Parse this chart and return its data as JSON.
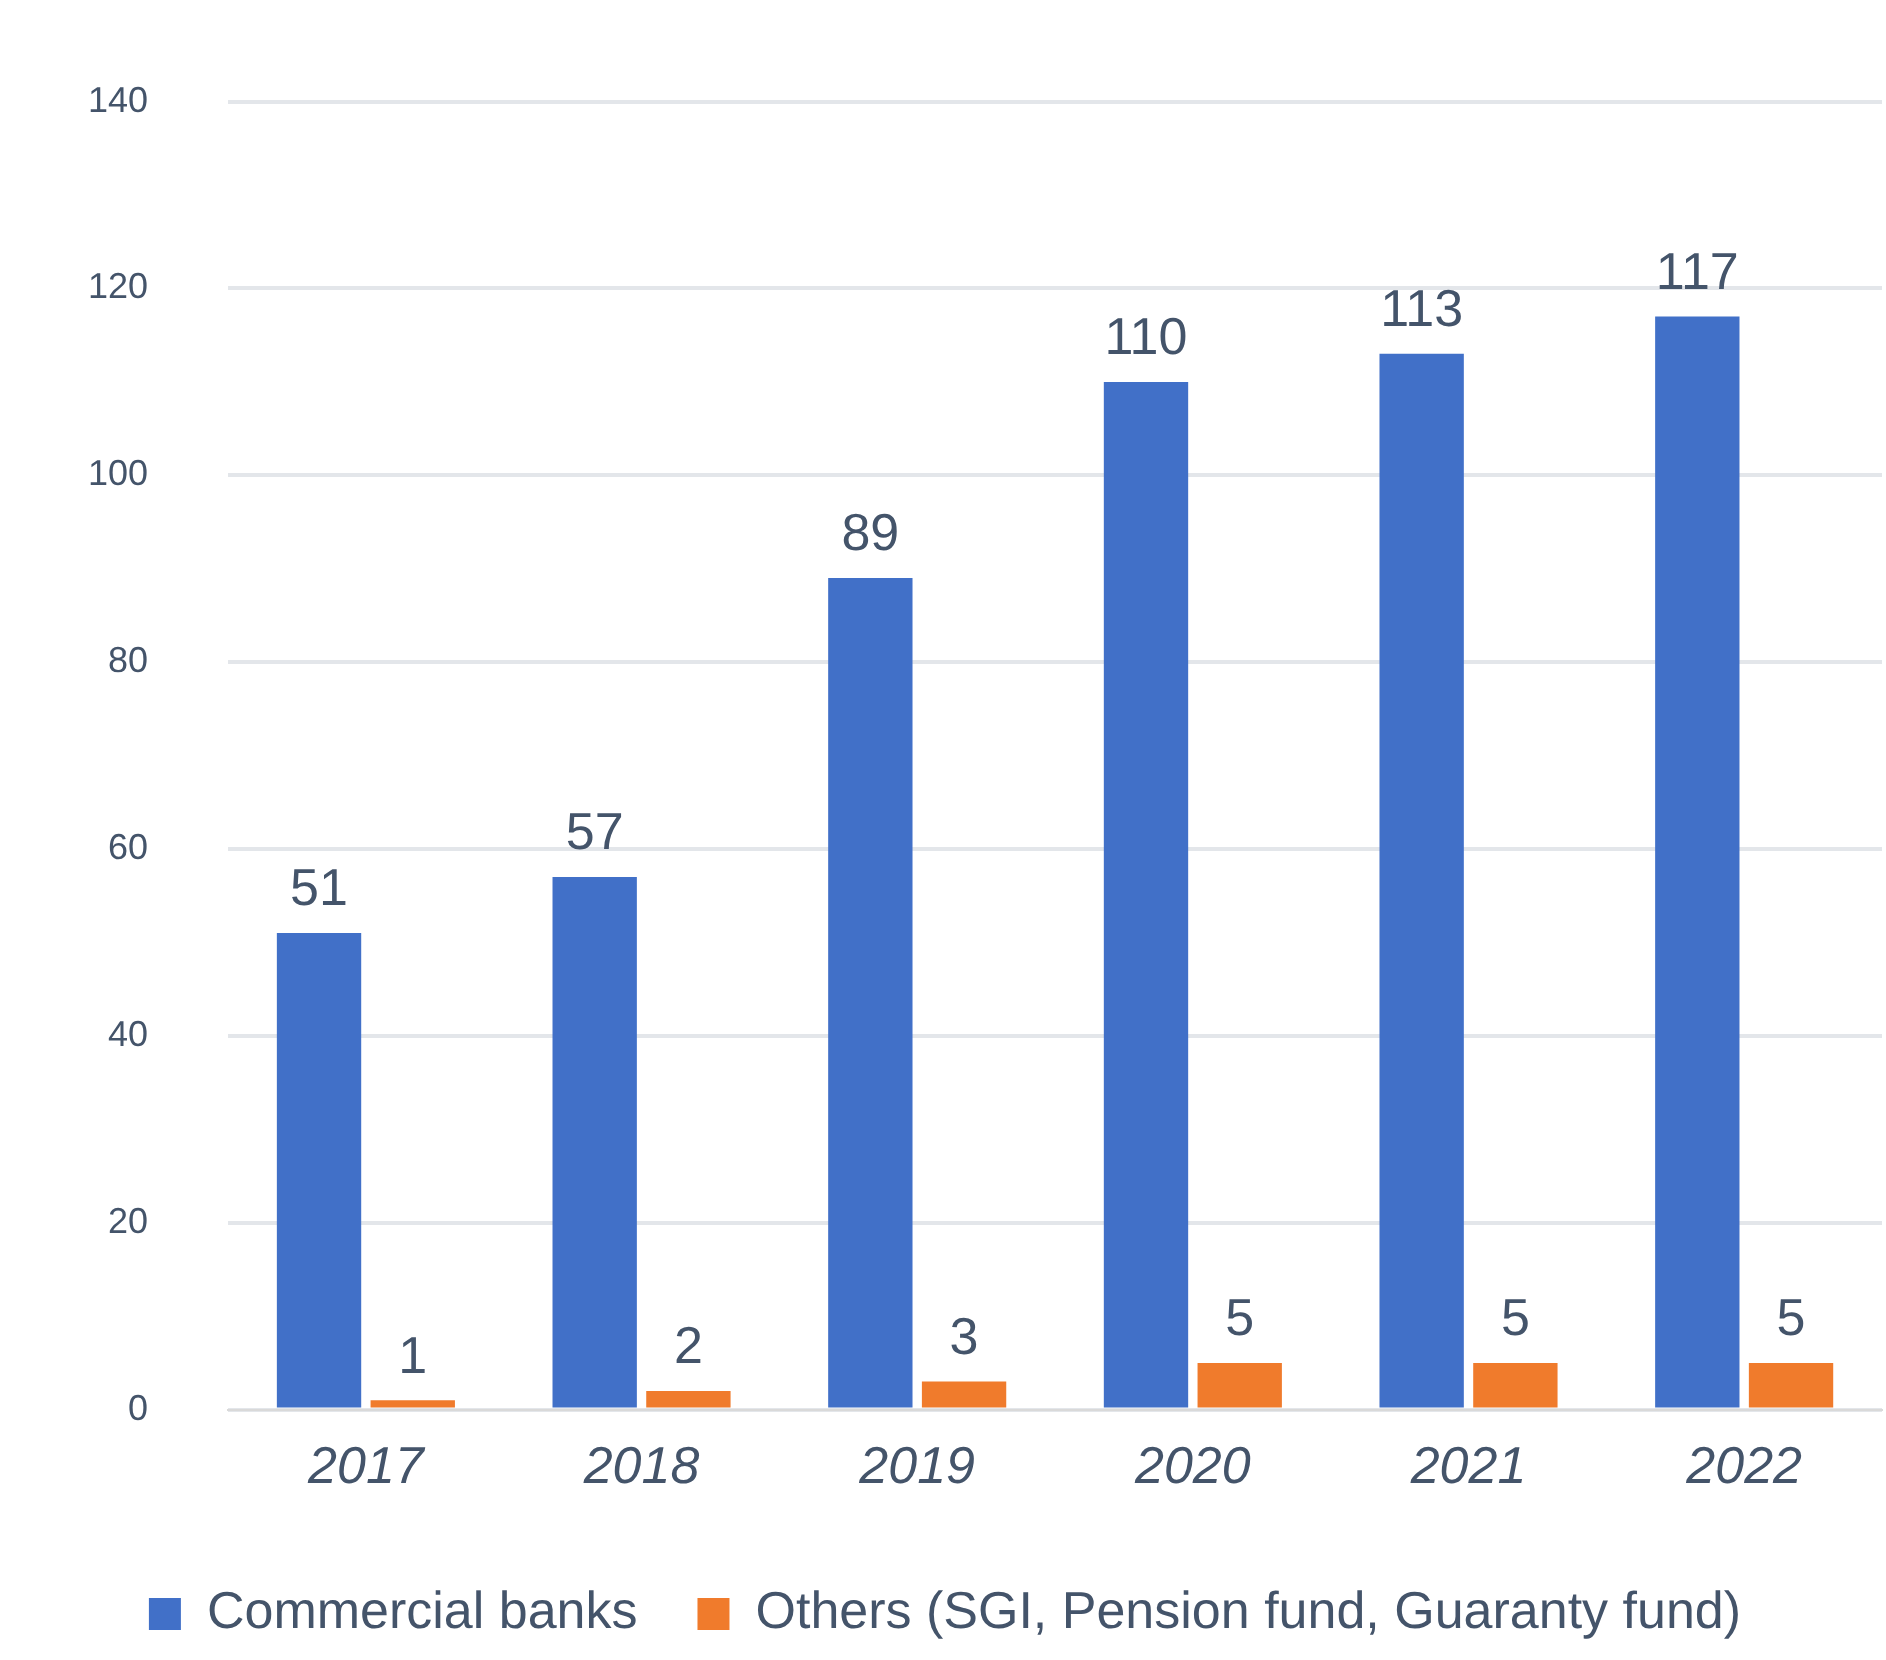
{
  "chart_data": {
    "type": "bar",
    "categories": [
      "2017",
      "2018",
      "2019",
      "2020",
      "2021",
      "2022"
    ],
    "series": [
      {
        "name": "Commercial banks",
        "color": "#4170c8",
        "values": [
          51,
          57,
          89,
          110,
          113,
          117
        ]
      },
      {
        "name": "Others (SGI, Pension fund, Guaranty fund)",
        "color": "#f07b2c",
        "values": [
          1,
          2,
          3,
          5,
          5,
          5
        ]
      }
    ],
    "ylim": [
      0,
      140
    ],
    "yticks": [
      0,
      20,
      40,
      60,
      80,
      100,
      120,
      140
    ],
    "grid": "y",
    "legend": "bottom",
    "data_labels": true
  }
}
